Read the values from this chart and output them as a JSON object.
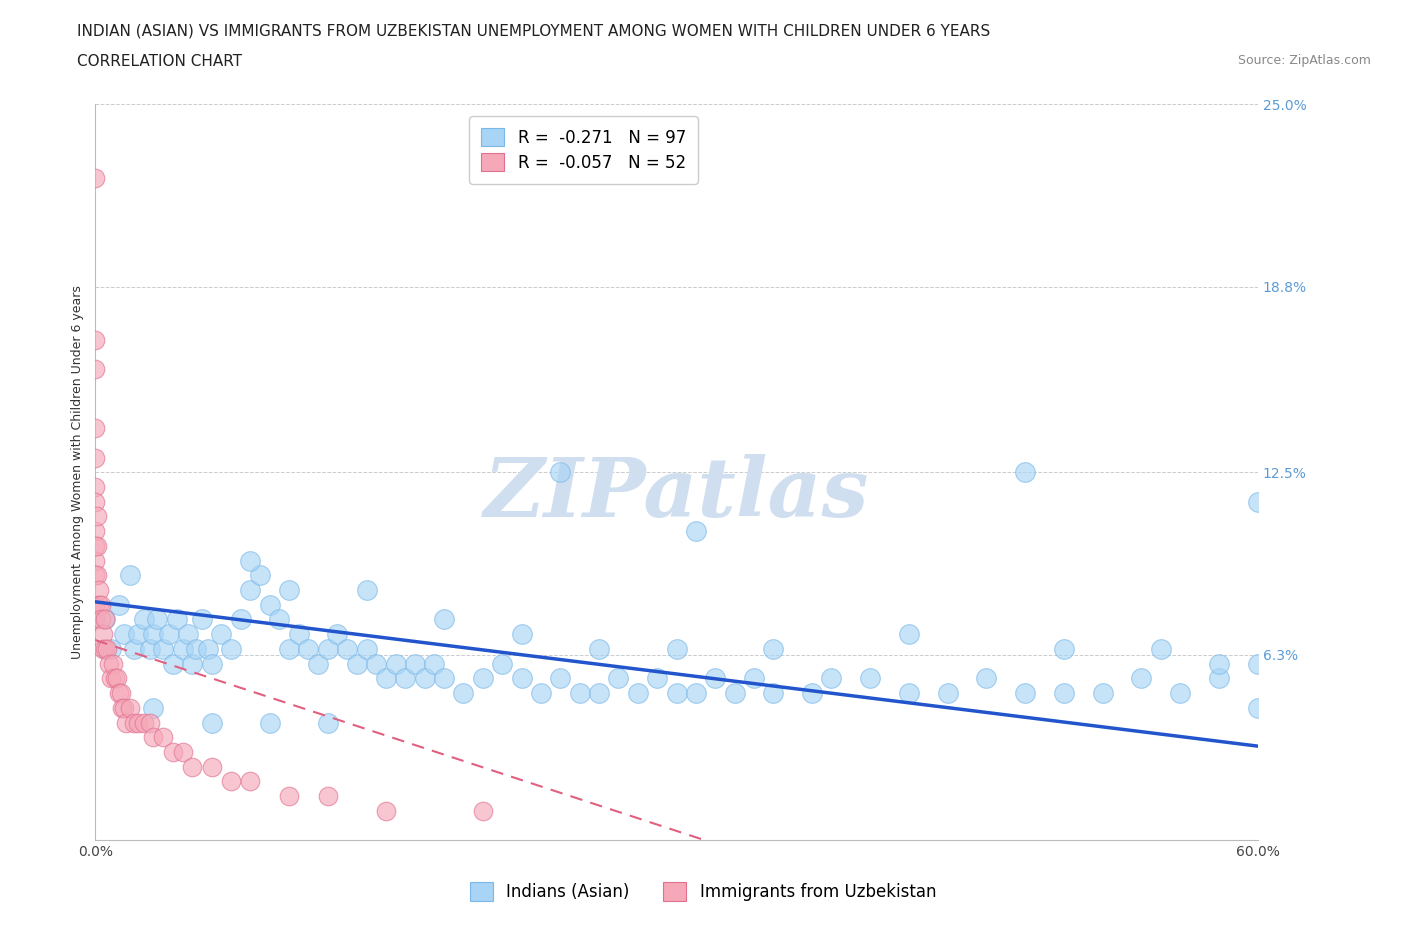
{
  "title_line1": "INDIAN (ASIAN) VS IMMIGRANTS FROM UZBEKISTAN UNEMPLOYMENT AMONG WOMEN WITH CHILDREN UNDER 6 YEARS",
  "title_line2": "CORRELATION CHART",
  "source": "Source: ZipAtlas.com",
  "ylabel": "Unemployment Among Women with Children Under 6 years",
  "xlim": [
    0.0,
    0.6
  ],
  "ylim": [
    0.0,
    0.25
  ],
  "ytick_vals": [
    0.063,
    0.125,
    0.188,
    0.25
  ],
  "ytick_labels": [
    "6.3%",
    "12.5%",
    "18.8%",
    "25.0%"
  ],
  "xtick_vals": [
    0.0,
    0.1,
    0.2,
    0.3,
    0.4,
    0.5,
    0.6
  ],
  "xtick_labels": [
    "0.0%",
    "",
    "",
    "",
    "",
    "",
    "60.0%"
  ],
  "legend_R1": "-0.271",
  "legend_N1": "97",
  "legend_R2": "-0.057",
  "legend_N2": "52",
  "color_indian": "#a8d4f5",
  "color_uzbek": "#f5a8b8",
  "color_line_indian": "#2255cc",
  "color_line_uzbek": "#e06080",
  "background_color": "#ffffff",
  "grid_color": "#cccccc",
  "watermark_color": "#d0dff0",
  "indian_x": [
    0.005,
    0.008,
    0.012,
    0.015,
    0.018,
    0.02,
    0.022,
    0.025,
    0.028,
    0.03,
    0.032,
    0.035,
    0.038,
    0.04,
    0.042,
    0.045,
    0.048,
    0.05,
    0.052,
    0.055,
    0.058,
    0.06,
    0.065,
    0.07,
    0.075,
    0.08,
    0.085,
    0.09,
    0.095,
    0.1,
    0.105,
    0.11,
    0.115,
    0.12,
    0.125,
    0.13,
    0.135,
    0.14,
    0.145,
    0.15,
    0.155,
    0.16,
    0.165,
    0.17,
    0.175,
    0.18,
    0.19,
    0.2,
    0.21,
    0.22,
    0.23,
    0.24,
    0.25,
    0.26,
    0.27,
    0.28,
    0.29,
    0.3,
    0.31,
    0.32,
    0.33,
    0.34,
    0.35,
    0.37,
    0.38,
    0.4,
    0.42,
    0.44,
    0.46,
    0.48,
    0.5,
    0.52,
    0.54,
    0.56,
    0.58,
    0.6,
    0.24,
    0.31,
    0.48,
    0.6,
    0.08,
    0.1,
    0.14,
    0.18,
    0.22,
    0.26,
    0.3,
    0.35,
    0.42,
    0.5,
    0.55,
    0.58,
    0.6,
    0.03,
    0.06,
    0.09,
    0.12
  ],
  "indian_y": [
    0.075,
    0.065,
    0.08,
    0.07,
    0.09,
    0.065,
    0.07,
    0.075,
    0.065,
    0.07,
    0.075,
    0.065,
    0.07,
    0.06,
    0.075,
    0.065,
    0.07,
    0.06,
    0.065,
    0.075,
    0.065,
    0.06,
    0.07,
    0.065,
    0.075,
    0.085,
    0.09,
    0.08,
    0.075,
    0.065,
    0.07,
    0.065,
    0.06,
    0.065,
    0.07,
    0.065,
    0.06,
    0.065,
    0.06,
    0.055,
    0.06,
    0.055,
    0.06,
    0.055,
    0.06,
    0.055,
    0.05,
    0.055,
    0.06,
    0.055,
    0.05,
    0.055,
    0.05,
    0.05,
    0.055,
    0.05,
    0.055,
    0.05,
    0.05,
    0.055,
    0.05,
    0.055,
    0.05,
    0.05,
    0.055,
    0.055,
    0.05,
    0.05,
    0.055,
    0.05,
    0.05,
    0.05,
    0.055,
    0.05,
    0.055,
    0.045,
    0.125,
    0.105,
    0.125,
    0.115,
    0.095,
    0.085,
    0.085,
    0.075,
    0.07,
    0.065,
    0.065,
    0.065,
    0.07,
    0.065,
    0.065,
    0.06,
    0.06,
    0.045,
    0.04,
    0.04,
    0.04
  ],
  "uzbek_x": [
    0.0,
    0.0,
    0.0,
    0.0,
    0.0,
    0.0,
    0.0,
    0.0,
    0.0,
    0.0,
    0.0,
    0.0,
    0.0,
    0.001,
    0.001,
    0.001,
    0.002,
    0.002,
    0.003,
    0.003,
    0.004,
    0.004,
    0.005,
    0.005,
    0.006,
    0.007,
    0.008,
    0.009,
    0.01,
    0.011,
    0.012,
    0.013,
    0.014,
    0.015,
    0.016,
    0.018,
    0.02,
    0.022,
    0.025,
    0.028,
    0.03,
    0.035,
    0.04,
    0.045,
    0.05,
    0.06,
    0.07,
    0.08,
    0.1,
    0.12,
    0.15,
    0.2
  ],
  "uzbek_y": [
    0.225,
    0.17,
    0.16,
    0.14,
    0.13,
    0.12,
    0.115,
    0.105,
    0.1,
    0.095,
    0.09,
    0.08,
    0.075,
    0.11,
    0.1,
    0.09,
    0.085,
    0.08,
    0.08,
    0.075,
    0.07,
    0.065,
    0.075,
    0.065,
    0.065,
    0.06,
    0.055,
    0.06,
    0.055,
    0.055,
    0.05,
    0.05,
    0.045,
    0.045,
    0.04,
    0.045,
    0.04,
    0.04,
    0.04,
    0.04,
    0.035,
    0.035,
    0.03,
    0.03,
    0.025,
    0.025,
    0.02,
    0.02,
    0.015,
    0.015,
    0.01,
    0.01
  ],
  "title_fontsize": 11,
  "axis_label_fontsize": 9,
  "tick_fontsize": 10,
  "legend_fontsize": 12,
  "marker_size_indian": 200,
  "marker_size_uzbek": 180
}
